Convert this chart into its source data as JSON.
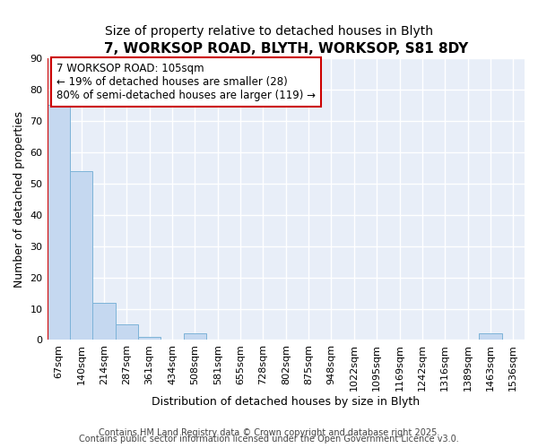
{
  "title": "7, WORKSOP ROAD, BLYTH, WORKSOP, S81 8DY",
  "subtitle": "Size of property relative to detached houses in Blyth",
  "xlabel": "Distribution of detached houses by size in Blyth",
  "ylabel": "Number of detached properties",
  "categories": [
    "67sqm",
    "140sqm",
    "214sqm",
    "287sqm",
    "361sqm",
    "434sqm",
    "508sqm",
    "581sqm",
    "655sqm",
    "728sqm",
    "802sqm",
    "875sqm",
    "948sqm",
    "1022sqm",
    "1095sqm",
    "1169sqm",
    "1242sqm",
    "1316sqm",
    "1389sqm",
    "1463sqm",
    "1536sqm"
  ],
  "values": [
    75,
    54,
    12,
    5,
    1,
    0,
    2,
    0,
    0,
    0,
    0,
    0,
    0,
    0,
    0,
    0,
    0,
    0,
    0,
    2,
    0
  ],
  "bar_color": "#c5d8f0",
  "bar_edge_color": "#7db3d8",
  "background_color": "#e8eef8",
  "grid_color": "#ffffff",
  "annotation_text": "7 WORKSOP ROAD: 105sqm\n← 19% of detached houses are smaller (28)\n80% of semi-detached houses are larger (119) →",
  "annotation_box_color": "#ffffff",
  "annotation_border_color": "#cc0000",
  "ylim": [
    0,
    90
  ],
  "yticks": [
    0,
    10,
    20,
    30,
    40,
    50,
    60,
    70,
    80,
    90
  ],
  "footer_line1": "Contains HM Land Registry data © Crown copyright and database right 2025.",
  "footer_line2": "Contains public sector information licensed under the Open Government Licence v3.0.",
  "title_fontsize": 11,
  "subtitle_fontsize": 10,
  "label_fontsize": 9,
  "tick_fontsize": 8,
  "annotation_fontsize": 8.5,
  "footer_fontsize": 7
}
